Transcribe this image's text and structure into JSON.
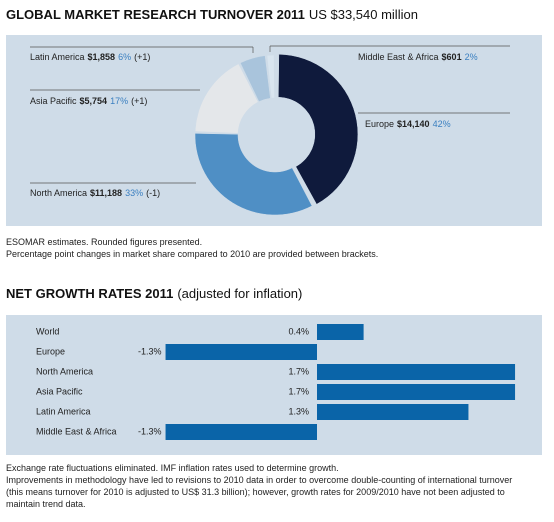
{
  "chart_data": [
    {
      "type": "donut",
      "title": "GLOBAL MARKET RESEARCH TURNOVER 2011",
      "subtitle": "US $33,540 million",
      "categories": [
        "Europe",
        "North America",
        "Asia Pacific",
        "Latin America",
        "Middle East & Africa"
      ],
      "values": [
        14140,
        11188,
        5754,
        1858,
        601
      ],
      "value_labels": [
        "$14,140",
        "$11,188",
        "$5,754",
        "$1,858",
        "$601"
      ],
      "shares": [
        42,
        33,
        17,
        6,
        2
      ],
      "share_labels": [
        "42%",
        "33%",
        "17%",
        "6%",
        "2%"
      ],
      "changes": [
        null,
        -1,
        1,
        1,
        null
      ],
      "change_labels": [
        null,
        "(-1)",
        "(+1)",
        "(+1)",
        null
      ],
      "colors": [
        "#0f1a3c",
        "#4f8fc5",
        "#e4e7ea",
        "#a9c4dc",
        "#d9e5ef"
      ],
      "notes": [
        "ESOMAR estimates. Rounded figures presented.",
        "Percentage point changes in market share compared to 2010 are provided between brackets."
      ]
    },
    {
      "type": "hbar",
      "title": "NET GROWTH RATES 2011",
      "subtitle": "(adjusted for inflation)",
      "categories": [
        "World",
        "Europe",
        "North America",
        "Asia Pacific",
        "Latin America",
        "Middle East & Africa"
      ],
      "values": [
        0.4,
        -1.3,
        1.7,
        1.7,
        1.3,
        -1.3
      ],
      "value_labels": [
        "0.4%",
        "-1.3%",
        "1.7%",
        "1.7%",
        "1.3%",
        "-1.3%"
      ],
      "color": "#0a64a8",
      "notes": [
        "Exchange rate fluctuations eliminated. IMF inflation rates used to determine growth.",
        "Improvements in methodology have led to revisions to 2010 data in order to overcome double-counting of international turnover (this means turnover for 2010 is adjusted to US$ 31.3 billion); however, growth rates for 2009/2010 have not been adjusted to maintain trend data."
      ]
    }
  ]
}
